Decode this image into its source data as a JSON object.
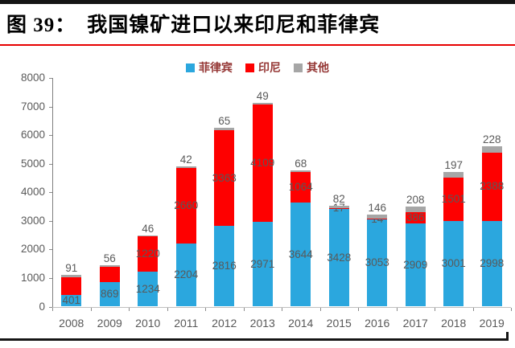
{
  "figure": {
    "label": "图 39：",
    "title": "我国镍矿进口以来印尼和菲律宾"
  },
  "legend": {
    "items": [
      {
        "name": "菲律宾",
        "color": "#2BA7DE"
      },
      {
        "name": "印尼",
        "color": "#FE0000"
      },
      {
        "name": "其他",
        "color": "#A6A6A6"
      }
    ],
    "text_color": "#953735"
  },
  "colors": {
    "philippines_blue": "#2BA7DE",
    "indonesia_red": "#FE0000",
    "other_gray": "#A6A6A6",
    "label_gray": "#595959",
    "title_black": "#000000",
    "rule_red": "#E60000"
  },
  "chart_data": {
    "type": "bar",
    "stacked": true,
    "title": "",
    "xlabel": "",
    "ylabel": "",
    "ylim": [
      0,
      8000
    ],
    "yticks": [
      0,
      1000,
      2000,
      3000,
      4000,
      5000,
      6000,
      7000,
      8000
    ],
    "grid": false,
    "legend_position": "top-center",
    "categories": [
      "2008",
      "2009",
      "2010",
      "2011",
      "2012",
      "2013",
      "2014",
      "2015",
      "2016",
      "2017",
      "2018",
      "2019"
    ],
    "series": [
      {
        "name": "菲律宾",
        "color": "#2BA7DE",
        "values": [
          401,
          869,
          1234,
          2204,
          2816,
          2971,
          3644,
          3428,
          3053,
          2909,
          3001,
          2998
        ],
        "labels": [
          "401",
          "869",
          "1234",
          "2204",
          "2816",
          "2971",
          "3644",
          "3428",
          "3053",
          "2909",
          "3001",
          "2998"
        ],
        "label_position": "inside-center"
      },
      {
        "name": "印尼",
        "color": "#FE0000",
        "values": [
          630,
          520,
          1220,
          2660,
          3363,
          4109,
          1064,
          17,
          14,
          386,
          1501,
          2388
        ],
        "labels": [
          "",
          "",
          "1220",
          "2660",
          "3363",
          "4109",
          "1064",
          "17",
          "14",
          "386",
          "1501",
          "2388"
        ],
        "label_position": "inside-center",
        "note": "2008/2009 segments unlabeled in figure; values estimated from bar heights"
      },
      {
        "name": "其他",
        "color": "#A6A6A6",
        "values": [
          91,
          56,
          46,
          42,
          65,
          49,
          68,
          82,
          146,
          208,
          197,
          228
        ],
        "labels": [
          "91",
          "56",
          "46",
          "42",
          "65",
          "49",
          "68",
          "82",
          "146",
          "208",
          "197",
          "228"
        ],
        "label_position": "outside-top"
      }
    ]
  }
}
